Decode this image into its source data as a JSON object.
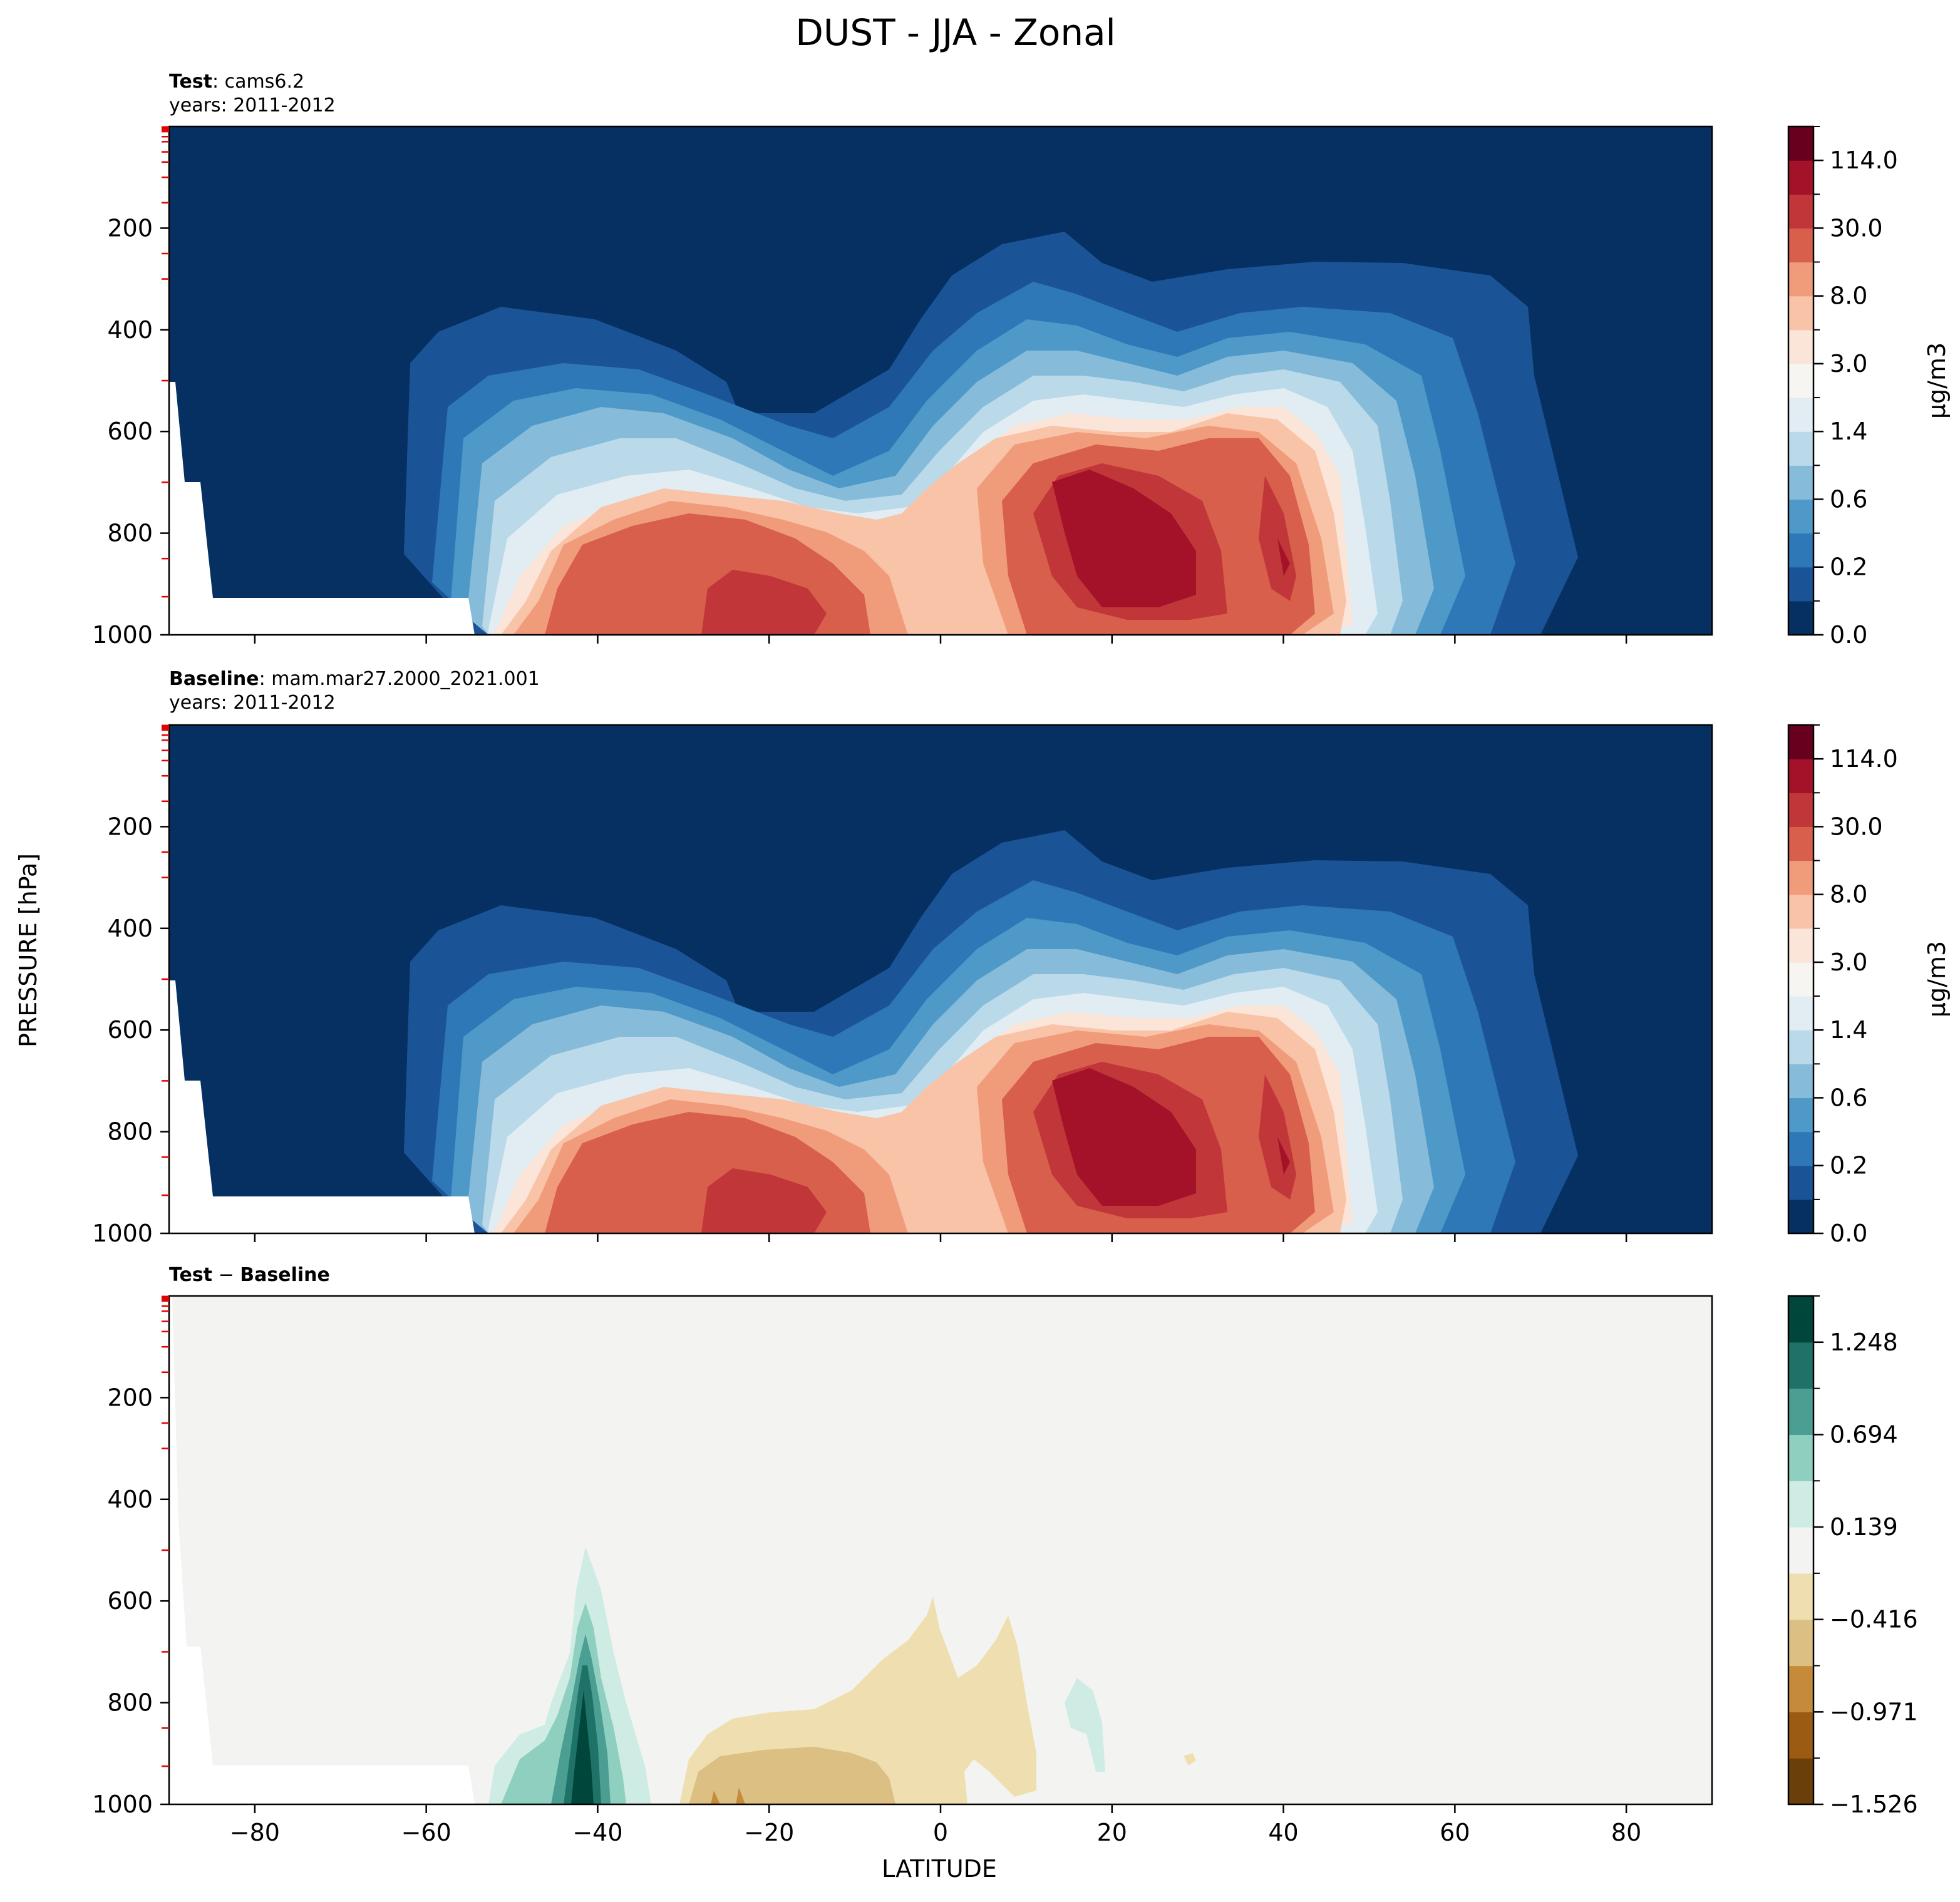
{
  "figure": {
    "title": "DUST - JJA - Zonal",
    "ylabel": "PRESSURE [hPa]",
    "xlabel": "LATITUDE"
  },
  "chart_data": [
    {
      "type": "contour",
      "panel": "test",
      "title_bold": "Test",
      "title_rest": ": cams6.2",
      "subtitle": "years: 2011-2012",
      "xlim": [
        -90,
        90
      ],
      "ylim": [
        1000,
        0
      ],
      "xticks": [
        -80,
        -60,
        -40,
        -20,
        0,
        20,
        40,
        60,
        80
      ],
      "xtick_labels": [],
      "yticks": [
        200,
        400,
        600,
        800,
        1000
      ],
      "ytick_labels": [
        "200",
        "400",
        "600",
        "800",
        "1000"
      ],
      "colorbar": {
        "label": "μg/m3",
        "tick_labels": [
          "0.0",
          "0.2",
          "0.6",
          "1.4",
          "3.0",
          "8.0",
          "30.0",
          "114.0"
        ],
        "colors": [
          "#053061",
          "#1a5497",
          "#2f78b7",
          "#4e99c8",
          "#86bbda",
          "#bad9e9",
          "#e1edf3",
          "#f7f5f2",
          "#fbe5d8",
          "#f9c3a8",
          "#f09c7b",
          "#d75f4c",
          "#c13638",
          "#a31228",
          "#67001f"
        ]
      },
      "lobes": [
        {
          "name": "northern-dust-maximum",
          "lat": 22,
          "pressure_top": 450,
          "max_value": 114.0
        },
        {
          "name": "southern-dust-maximum",
          "lat": -22,
          "pressure_top": 700,
          "max_value": 30.0
        }
      ]
    },
    {
      "type": "contour",
      "panel": "baseline",
      "title_bold": "Baseline",
      "title_rest": ": mam.mar27.2000_2021.001",
      "subtitle": "years: 2011-2012",
      "xlim": [
        -90,
        90
      ],
      "ylim": [
        1000,
        0
      ],
      "xticks": [
        -80,
        -60,
        -40,
        -20,
        0,
        20,
        40,
        60,
        80
      ],
      "xtick_labels": [],
      "yticks": [
        200,
        400,
        600,
        800,
        1000
      ],
      "ytick_labels": [
        "200",
        "400",
        "600",
        "800",
        "1000"
      ],
      "colorbar": {
        "label": "μg/m3",
        "tick_labels": [
          "0.0",
          "0.2",
          "0.6",
          "1.4",
          "3.0",
          "8.0",
          "30.0",
          "114.0"
        ],
        "colors": [
          "#053061",
          "#1a5497",
          "#2f78b7",
          "#4e99c8",
          "#86bbda",
          "#bad9e9",
          "#e1edf3",
          "#f7f5f2",
          "#fbe5d8",
          "#f9c3a8",
          "#f09c7b",
          "#d75f4c",
          "#c13638",
          "#a31228",
          "#67001f"
        ]
      }
    },
    {
      "type": "contour",
      "panel": "difference",
      "title_bold": "Test",
      "title_minus": " − ",
      "title_bold2": "Baseline",
      "xlim": [
        -90,
        90
      ],
      "ylim": [
        1000,
        0
      ],
      "xticks": [
        -80,
        -60,
        -40,
        -20,
        0,
        20,
        40,
        60,
        80
      ],
      "xtick_labels": [
        "−80",
        "−60",
        "−40",
        "−20",
        "0",
        "20",
        "40",
        "60",
        "80"
      ],
      "yticks": [
        200,
        400,
        600,
        800,
        1000
      ],
      "ytick_labels": [
        "200",
        "400",
        "600",
        "800",
        "1000"
      ],
      "colorbar": {
        "label": "",
        "tick_labels": [
          "−1.526",
          "−0.971",
          "−0.416",
          "0.139",
          "0.694",
          "1.248"
        ],
        "colors": [
          "#6b3f0a",
          "#9c5b12",
          "#c58a3a",
          "#dcc083",
          "#efdfb0",
          "#f3f4f1",
          "#cfece4",
          "#8fcfc0",
          "#4a9e92",
          "#1e7268",
          "#00463a"
        ]
      },
      "features": [
        {
          "name": "positive-anomaly",
          "lat": -42,
          "pressure_top": 720,
          "max_value": 1.248
        },
        {
          "name": "negative-anomaly",
          "lat": -15,
          "pressure_top": 750,
          "max_value": -0.416
        }
      ]
    }
  ]
}
